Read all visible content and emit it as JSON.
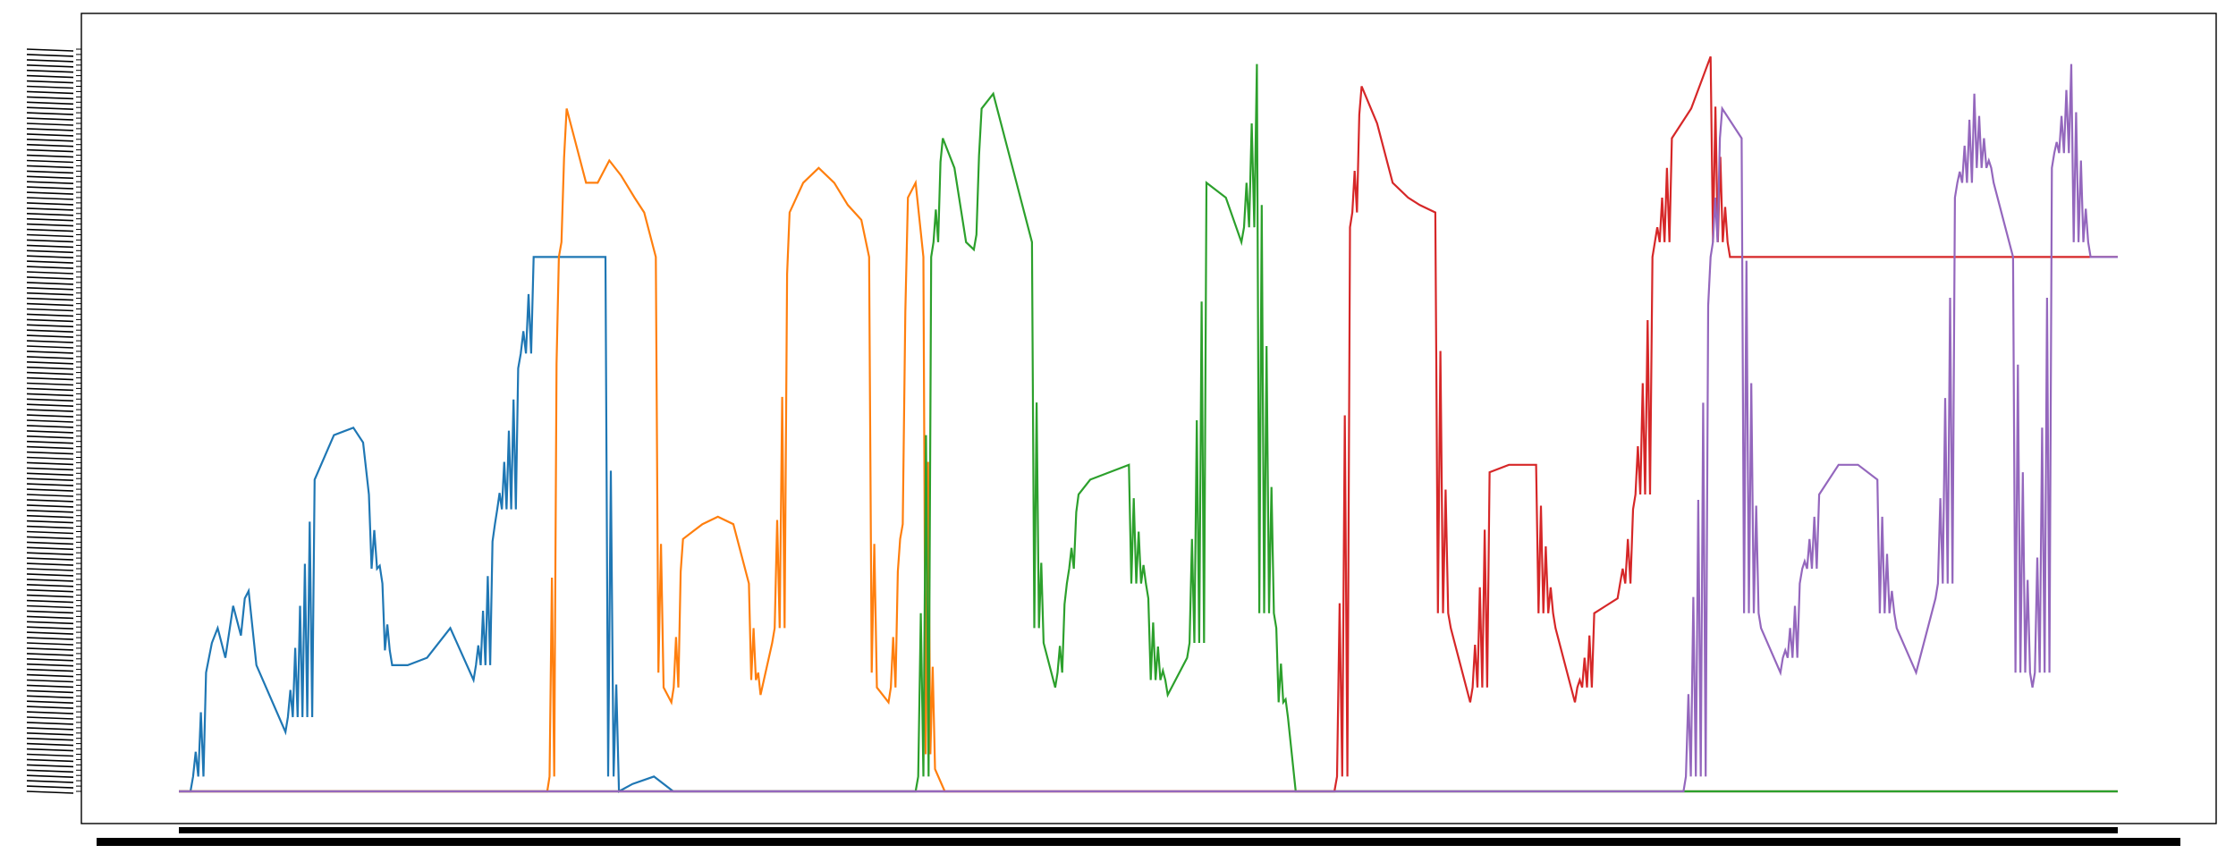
{
  "chart_data": {
    "type": "line",
    "title": "",
    "xlabel": "",
    "ylabel": "",
    "grid": false,
    "legend": "none",
    "xlim": [
      0,
      1000
    ],
    "ylim": [
      0,
      100
    ],
    "y_tick_labels_legible": false,
    "x_tick_labels_legible": false,
    "series": [
      {
        "color": "#1f77b4",
        "x": [
          0,
          6,
          14,
          17,
          20,
          24,
          28,
          32,
          34,
          36,
          40,
          55,
          70,
          80,
          90,
          95,
          98,
          105,
          110,
          118,
          128,
          140,
          152,
          163,
          175,
          183,
          190,
          198,
          205,
          212,
          220,
          227,
          234,
          245,
          255,
          262,
          268,
          273,
          276,
          1000
        ],
        "y": [
          0,
          0,
          16,
          20,
          22,
          18,
          25,
          21,
          26,
          27,
          17,
          8,
          42,
          48,
          49,
          47,
          40,
          28,
          17,
          17,
          18,
          22,
          15,
          36,
          57,
          72,
          72,
          72,
          72,
          72,
          72,
          0,
          1,
          2,
          0,
          0,
          0,
          0,
          0,
          0
        ]
      },
      {
        "color": "#ff7f0e",
        "x": [
          0,
          190,
          196,
          200,
          204,
          210,
          216,
          222,
          228,
          235,
          240,
          246,
          250,
          254,
          260,
          265,
          270,
          278,
          286,
          294,
          300,
          306,
          315,
          322,
          330,
          338,
          345,
          352,
          356,
          360,
          366,
          372,
          376,
          380,
          384,
          390,
          395,
          1000
        ],
        "y": [
          0,
          0,
          72,
          92,
          88,
          82,
          82,
          85,
          83,
          80,
          78,
          72,
          14,
          12,
          34,
          35,
          36,
          37,
          36,
          28,
          13,
          20,
          78,
          82,
          84,
          82,
          79,
          77,
          72,
          14,
          12,
          34,
          80,
          82,
          72,
          3,
          0,
          0
        ]
      },
      {
        "color": "#2ca02c",
        "x": [
          0,
          380,
          388,
          394,
          400,
          406,
          410,
          414,
          420,
          426,
          432,
          440,
          446,
          452,
          458,
          464,
          470,
          480,
          490,
          500,
          510,
          520,
          530,
          540,
          548,
          556,
          566,
          572,
          576,
          600,
          1000
        ],
        "y": [
          0,
          0,
          72,
          88,
          84,
          74,
          73,
          92,
          94,
          88,
          82,
          74,
          20,
          14,
          28,
          40,
          42,
          43,
          44,
          26,
          13,
          18,
          82,
          80,
          74,
          98,
          22,
          10,
          0,
          0,
          0
        ]
      },
      {
        "color": "#d62728",
        "x": [
          0,
          596,
          604,
          610,
          618,
          626,
          634,
          640,
          648,
          656,
          666,
          676,
          686,
          700,
          710,
          720,
          730,
          736,
          742,
          750,
          760,
          770,
          780,
          790,
          800,
          805,
          1000
        ],
        "y": [
          0,
          0,
          76,
          95,
          90,
          82,
          80,
          79,
          78,
          22,
          12,
          43,
          44,
          44,
          22,
          12,
          24,
          25,
          26,
          38,
          72,
          88,
          92,
          99,
          72,
          72,
          72
        ]
      },
      {
        "color": "#9467bd",
        "x": [
          0,
          776,
          790,
          796,
          806,
          816,
          826,
          836,
          846,
          856,
          866,
          876,
          886,
          896,
          906,
          916,
          926,
          936,
          946,
          956,
          966,
          976,
          986,
          1000
        ],
        "y": [
          0,
          0,
          72,
          92,
          88,
          22,
          16,
          28,
          40,
          44,
          44,
          42,
          22,
          16,
          26,
          80,
          94,
          82,
          72,
          14,
          84,
          98,
          72,
          72
        ]
      }
    ]
  }
}
